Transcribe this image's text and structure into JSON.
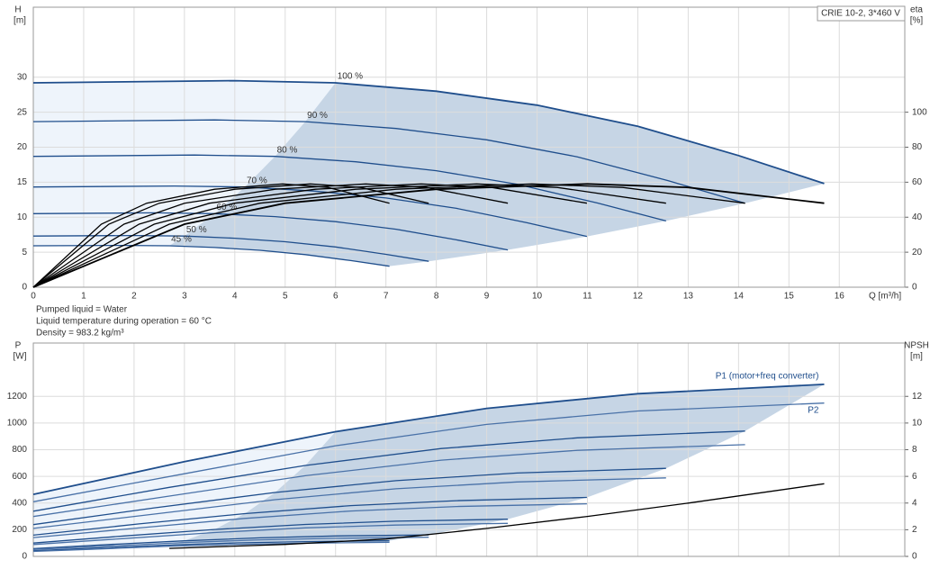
{
  "chart_data": [
    {
      "type": "line",
      "ylabel": "H",
      "yunit": "[m]",
      "y2label": "eta",
      "y2unit": "[%]",
      "xlabel": "Q [m³/h]",
      "legend_text": "CRIE 10-2, 3*460 V",
      "xlim": [
        0,
        17.3
      ],
      "ylim": [
        0,
        40
      ],
      "y2lim": [
        0,
        160
      ],
      "xticks": [
        0,
        1,
        2,
        3,
        4,
        5,
        6,
        7,
        8,
        9,
        10,
        11,
        12,
        13,
        14,
        15,
        16
      ],
      "yticks": [
        0,
        5,
        10,
        15,
        20,
        25,
        30
      ],
      "y2ticks": [
        0,
        20,
        40,
        60,
        80,
        100
      ],
      "grid": true,
      "series": [
        {
          "name": "100 %",
          "color": "#1f4e8c",
          "x": [
            0,
            4,
            6,
            8,
            10,
            12,
            14,
            15.7
          ],
          "values": [
            29.2,
            29.5,
            29.2,
            28.0,
            26.0,
            23.0,
            18.8,
            14.8
          ]
        },
        {
          "name": "90 %",
          "color": "#1f4e8c",
          "x": [
            0,
            3.6,
            5.4,
            7.2,
            9,
            10.8,
            12.6,
            14.13
          ],
          "values": [
            23.65,
            23.9,
            23.65,
            22.68,
            21.06,
            18.63,
            15.23,
            11.99
          ]
        },
        {
          "name": "80 %",
          "color": "#1f4e8c",
          "x": [
            0,
            3.2,
            4.8,
            6.4,
            8,
            9.6,
            11.2,
            12.56
          ],
          "values": [
            18.69,
            18.88,
            18.69,
            17.92,
            16.64,
            14.72,
            12.03,
            9.47
          ]
        },
        {
          "name": "70 %",
          "color": "#1f4e8c",
          "x": [
            0,
            2.8,
            4.2,
            5.6,
            7,
            8.4,
            9.8,
            10.99
          ],
          "values": [
            14.31,
            14.46,
            14.31,
            13.72,
            12.74,
            11.27,
            9.21,
            7.25
          ]
        },
        {
          "name": "60 %",
          "color": "#1f4e8c",
          "x": [
            0,
            2.4,
            3.6,
            4.8,
            6,
            7.2,
            8.4,
            9.42
          ],
          "values": [
            10.51,
            10.62,
            10.51,
            10.08,
            9.36,
            8.28,
            6.77,
            5.33
          ]
        },
        {
          "name": "50 %",
          "color": "#1f4e8c",
          "x": [
            0,
            2,
            3,
            4,
            5,
            6,
            7,
            7.85
          ],
          "values": [
            7.3,
            7.38,
            7.3,
            7,
            6.5,
            5.75,
            4.7,
            3.7
          ]
        },
        {
          "name": "45 %",
          "color": "#1f4e8c",
          "x": [
            0,
            1.8,
            2.7,
            3.6,
            4.5,
            5.4,
            6.3,
            7.07
          ],
          "values": [
            5.91,
            5.97,
            5.91,
            5.67,
            5.27,
            4.66,
            3.81,
            3.0
          ]
        },
        {
          "axis": "y2",
          "color": "#000000",
          "x": [
            0,
            3,
            5,
            8,
            11,
            13,
            15.7
          ],
          "values": [
            0,
            36,
            48,
            56,
            59,
            57,
            48
          ]
        },
        {
          "axis": "y2",
          "color": "#000000",
          "x": [
            0,
            2.7,
            4.5,
            7.2,
            9.9,
            11.7,
            14.13
          ],
          "values": [
            0,
            36,
            48,
            56,
            59,
            57,
            48
          ]
        },
        {
          "axis": "y2",
          "color": "#000000",
          "x": [
            0,
            2.4,
            4,
            6.4,
            8.8,
            10.4,
            12.56
          ],
          "values": [
            0,
            36,
            48,
            56,
            59,
            57,
            48
          ]
        },
        {
          "axis": "y2",
          "color": "#000000",
          "x": [
            0,
            2.1,
            3.5,
            5.6,
            7.7,
            9.1,
            10.99
          ],
          "values": [
            0,
            36,
            48,
            56,
            59,
            57,
            48
          ]
        },
        {
          "axis": "y2",
          "color": "#000000",
          "x": [
            0,
            1.8,
            3,
            4.8,
            6.6,
            7.8,
            9.42
          ],
          "values": [
            0,
            36,
            48,
            56,
            59,
            57,
            48
          ]
        },
        {
          "axis": "y2",
          "color": "#000000",
          "x": [
            0,
            1.5,
            2.5,
            4,
            5.5,
            6.5,
            7.85
          ],
          "values": [
            0,
            36,
            48,
            56,
            59,
            57,
            48
          ]
        },
        {
          "axis": "y2",
          "color": "#000000",
          "x": [
            0,
            1.35,
            2.25,
            3.6,
            4.95,
            5.85,
            7.07
          ],
          "values": [
            0,
            36,
            48,
            56,
            59,
            57,
            48
          ]
        }
      ]
    },
    {
      "type": "line",
      "ylabel": "P",
      "yunit": "[W]",
      "y2label": "NPSH",
      "y2unit": "[m]",
      "xlim": [
        0,
        17.3
      ],
      "ylim": [
        0,
        1600
      ],
      "y2lim": [
        0,
        16
      ],
      "xticks": [
        0,
        1,
        2,
        3,
        4,
        5,
        6,
        7,
        8,
        9,
        10,
        11,
        12,
        13,
        14,
        15,
        16
      ],
      "yticks": [
        0,
        200,
        400,
        600,
        800,
        1000,
        1200
      ],
      "y2ticks": [
        0,
        2,
        4,
        6,
        8,
        10,
        12
      ],
      "grid": true,
      "series": [
        {
          "name": "P1 (motor+freq converter)",
          "color": "#1f4e8c",
          "x": [
            0,
            3,
            6,
            9,
            12,
            15.7
          ],
          "values": [
            465,
            710,
            935,
            1110,
            1220,
            1290
          ]
        },
        {
          "color": "#1f4e8c",
          "x": [
            0,
            2.7,
            5.4,
            8.1,
            10.8,
            14.13
          ],
          "values": [
            339,
            518,
            682,
            809,
            889,
            940
          ]
        },
        {
          "color": "#1f4e8c",
          "x": [
            0,
            2.4,
            4.8,
            7.2,
            9.6,
            12.56
          ],
          "values": [
            238,
            364,
            479,
            568,
            625,
            660
          ]
        },
        {
          "color": "#1f4e8c",
          "x": [
            0,
            2.1,
            4.2,
            6.3,
            8.4,
            10.99
          ],
          "values": [
            159,
            244,
            321,
            381,
            418,
            442
          ]
        },
        {
          "color": "#1f4e8c",
          "x": [
            0,
            1.8,
            3.6,
            5.4,
            7.2,
            9.42
          ],
          "values": [
            100,
            153,
            202,
            240,
            264,
            279
          ]
        },
        {
          "color": "#1f4e8c",
          "x": [
            0,
            1.5,
            3,
            4.5,
            6,
            7.85
          ],
          "values": [
            58,
            89,
            117,
            139,
            153,
            161
          ]
        },
        {
          "color": "#1f4e8c",
          "x": [
            0,
            1.35,
            2.7,
            4.05,
            5.4,
            7.07
          ],
          "values": [
            42,
            65,
            85,
            101,
            111,
            117
          ]
        },
        {
          "name": "P2",
          "color": "#4a72a8",
          "x": [
            0,
            3,
            6,
            9,
            12,
            15.7
          ],
          "values": [
            410,
            620,
            830,
            990,
            1090,
            1150
          ]
        },
        {
          "color": "#4a72a8",
          "x": [
            0,
            2.7,
            5.4,
            8.1,
            10.8,
            14.13
          ],
          "values": [
            299,
            452,
            605,
            722,
            795,
            838
          ]
        },
        {
          "color": "#4a72a8",
          "x": [
            0,
            2.4,
            4.8,
            7.2,
            9.6,
            12.56
          ],
          "values": [
            210,
            317,
            425,
            507,
            558,
            589
          ]
        },
        {
          "color": "#4a72a8",
          "x": [
            0,
            2.1,
            4.2,
            6.3,
            8.4,
            10.99
          ],
          "values": [
            141,
            213,
            285,
            340,
            374,
            394
          ]
        },
        {
          "color": "#4a72a8",
          "x": [
            0,
            1.8,
            3.6,
            5.4,
            7.2,
            9.42
          ],
          "values": [
            89,
            134,
            179,
            214,
            235,
            248
          ]
        },
        {
          "color": "#4a72a8",
          "x": [
            0,
            1.5,
            3,
            4.5,
            6,
            7.85
          ],
          "values": [
            51,
            78,
            104,
            124,
            136,
            144
          ]
        },
        {
          "color": "#4a72a8",
          "x": [
            0,
            1.35,
            2.7,
            4.05,
            5.4,
            7.07
          ],
          "values": [
            37,
            56,
            76,
            90,
            99,
            105
          ]
        },
        {
          "axis": "y2",
          "color": "#000000",
          "x": [
            2.7,
            5,
            7,
            9,
            11,
            13,
            15.7
          ],
          "values": [
            0.6,
            0.9,
            1.3,
            2.1,
            3.0,
            4.0,
            5.45
          ]
        }
      ]
    }
  ],
  "notes": [
    "Pumped liquid = Water",
    "Liquid temperature during operation = 60 °C",
    "Density = 983.2 kg/m³"
  ]
}
